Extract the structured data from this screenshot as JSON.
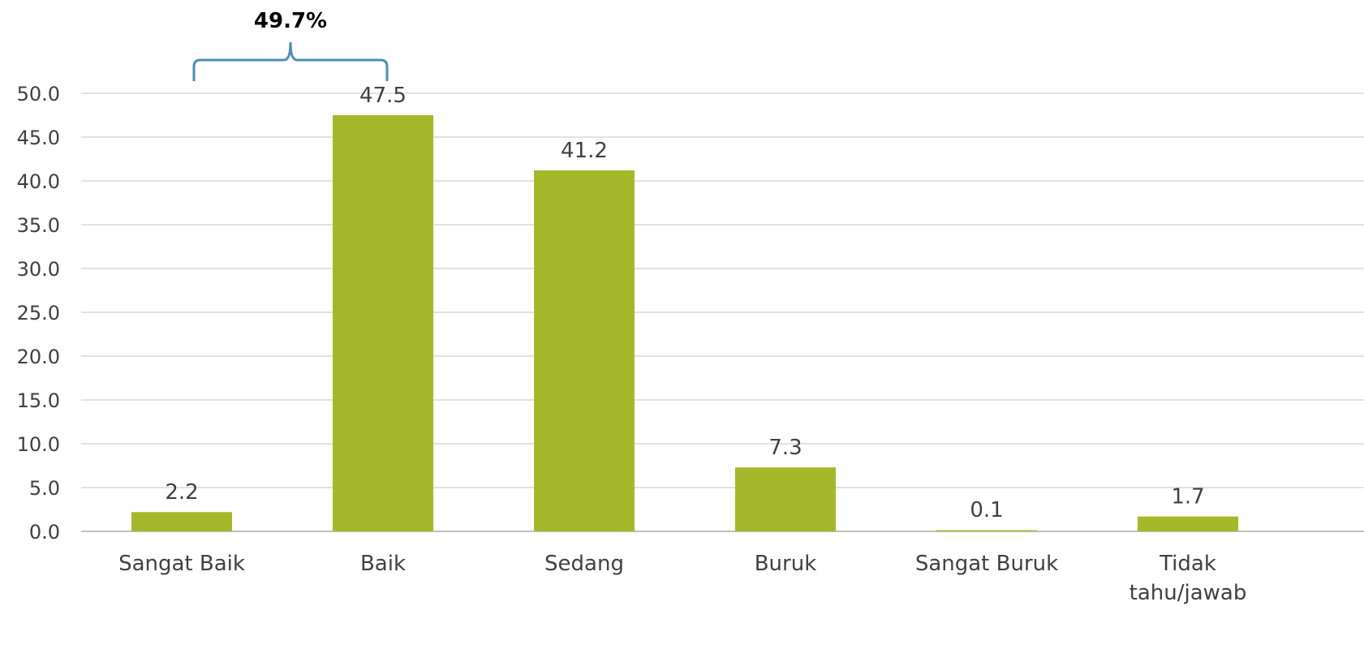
{
  "chart_data": {
    "type": "bar",
    "title": "",
    "xlabel": "",
    "ylabel": "",
    "categories": [
      "Sangat Baik",
      "Baik",
      "Sedang",
      "Buruk",
      "Sangat Buruk",
      "Tidak tahu/jawab"
    ],
    "category_lines": [
      [
        "Sangat Baik"
      ],
      [
        "Baik"
      ],
      [
        "Sedang"
      ],
      [
        "Buruk"
      ],
      [
        "Sangat Buruk"
      ],
      [
        "Tidak",
        "tahu/jawab"
      ]
    ],
    "values": [
      2.2,
      47.5,
      41.2,
      7.3,
      0.1,
      1.7
    ],
    "data_labels": [
      "2.2",
      "47.5",
      "41.2",
      "7.3",
      "0.1",
      "1.7"
    ],
    "ylim": [
      0,
      50
    ],
    "yticks": [
      "0.0",
      "5.0",
      "10.0",
      "15.0",
      "20.0",
      "25.0",
      "30.0",
      "35.0",
      "40.0",
      "45.0",
      "50.0"
    ],
    "grid": true,
    "legend": "none",
    "annotation": {
      "label": "49.7%",
      "spans": [
        "Sangat Baik",
        "Baik"
      ]
    },
    "colors": {
      "bar": "#a5b82a",
      "bracket": "#4a8db7",
      "grid": "#d9d9d9",
      "text": "#404040"
    }
  }
}
